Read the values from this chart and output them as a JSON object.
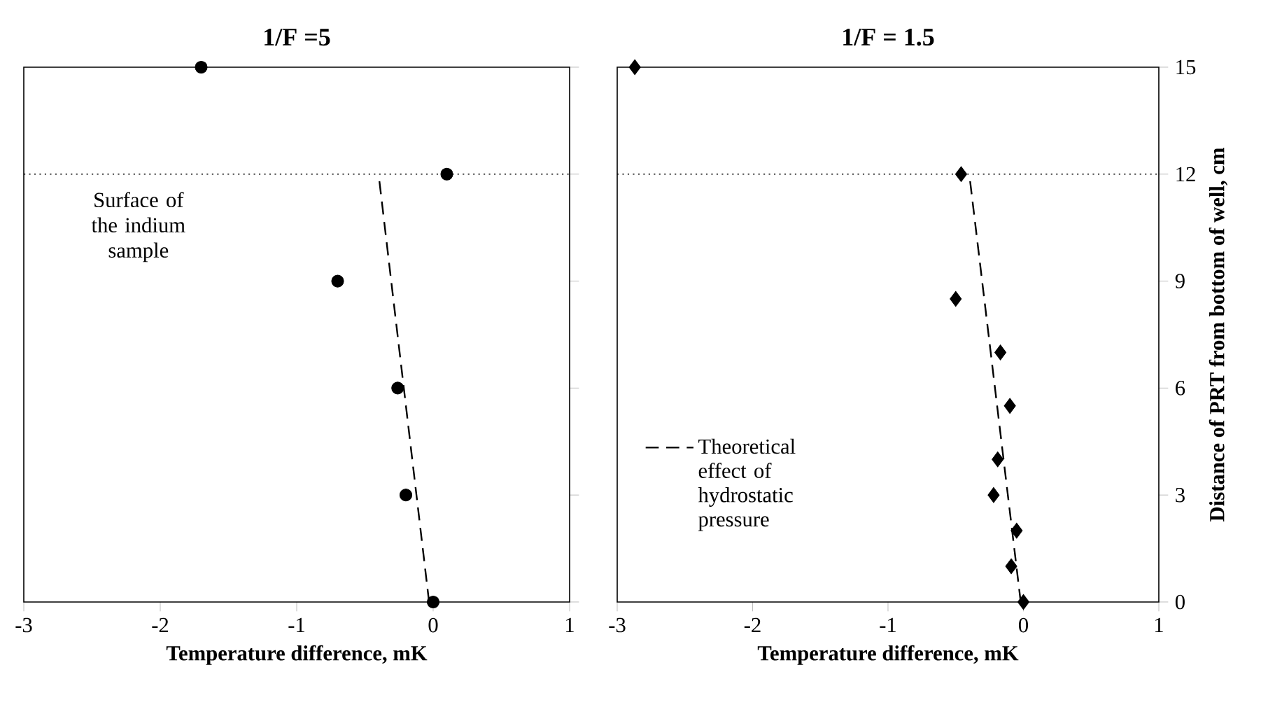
{
  "chart_data": [
    {
      "type": "scatter",
      "title": "1/F =5",
      "xlabel": "Temperature difference, mK",
      "xlim": [
        -3,
        1
      ],
      "xticks": [
        -3,
        -2,
        -1,
        0,
        1
      ],
      "ylim": [
        0,
        15
      ],
      "yticks": [
        0,
        3,
        6,
        9,
        12,
        15
      ],
      "tick_labels": "x",
      "legend": false,
      "series": [
        {
          "marker": "circle",
          "color": "#000000",
          "x": [
            -1.7,
            0.1,
            -0.7,
            -0.26,
            -0.2,
            0
          ],
          "values": [
            15,
            12,
            9,
            6,
            3,
            0
          ]
        },
        {
          "type": "line",
          "marker": "none",
          "line_style": "dashed",
          "color": "#000000",
          "x": [
            -0.03,
            -0.4
          ],
          "values": [
            0,
            12
          ]
        }
      ],
      "ref_lines": [
        {
          "axis": "y",
          "value": 12,
          "label": "Surface of the indium sample",
          "line_style": "dotted",
          "color": "#000000"
        }
      ]
    },
    {
      "type": "scatter",
      "title": "1/F = 1.5",
      "xlabel": "Temperature difference, mK",
      "ylabel": "Distance of PRT from bottom of well, cm",
      "xlim": [
        -3,
        1
      ],
      "xticks": [
        -3,
        -2,
        -1,
        0,
        1
      ],
      "ylim": [
        0,
        15
      ],
      "yticks": [
        0,
        3,
        6,
        9,
        12,
        15
      ],
      "legend": "bottom left",
      "series": [
        {
          "marker": "diamond",
          "color": "#000000",
          "x": [
            -2.87,
            -0.46,
            -0.5,
            -0.17,
            -0.1,
            -0.19,
            -0.22,
            -0.05,
            -0.09,
            0
          ],
          "values": [
            15,
            12,
            8.5,
            7,
            5.5,
            4,
            3,
            2,
            1,
            0
          ]
        },
        {
          "type": "line",
          "name": "Theoretical effect of hydrostatic pressure",
          "marker": "none",
          "line_style": "dashed",
          "color": "#000000",
          "x": [
            -0.02,
            -0.4
          ],
          "values": [
            0,
            12
          ]
        }
      ],
      "ref_lines": [
        {
          "axis": "y",
          "value": 12,
          "line_style": "dotted",
          "color": "#000000"
        }
      ]
    }
  ]
}
